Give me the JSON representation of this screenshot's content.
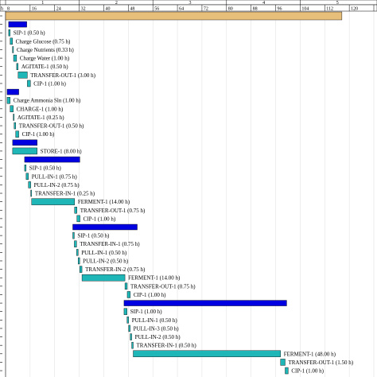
{
  "chart_data": {
    "type": "gantt",
    "time_unit": "h",
    "day_row_label": "h",
    "day_ticks": [
      "1",
      "2",
      "3",
      "4",
      "5"
    ],
    "hour_ticks": [
      "8",
      "16",
      "24",
      "32",
      "40",
      "48",
      "56",
      "64",
      "72",
      "80",
      "88",
      "96",
      "104",
      "112",
      "120"
    ],
    "xlim": [
      0,
      120
    ],
    "colors": {
      "recipe": "#e8bf7a",
      "procedure": "#0000e0",
      "operation": "#1fb6b8",
      "border": "#000000"
    },
    "rows": [
      {
        "kind": "recipe",
        "start": 0,
        "duration": 109.6
      },
      {
        "kind": "procedure",
        "start": 1.0,
        "duration": 5.9
      },
      {
        "kind": "operation",
        "label": "SIP-1 (0.50 h)",
        "start": 1.0,
        "duration": 0.5
      },
      {
        "kind": "operation",
        "label": "Charge Glucose (0.75 h)",
        "start": 1.5,
        "duration": 0.75
      },
      {
        "kind": "operation",
        "label": "Charge Nutrients (0.33 h)",
        "start": 2.25,
        "duration": 0.33
      },
      {
        "kind": "operation",
        "label": "Charge Water (1.00 h)",
        "start": 2.6,
        "duration": 1.0
      },
      {
        "kind": "operation",
        "label": "AGITATE-1 (0.50 h)",
        "start": 3.6,
        "duration": 0.5
      },
      {
        "kind": "operation",
        "label": "TRANSFER-OUT-1 (3.00 h)",
        "start": 4.1,
        "duration": 3.0
      },
      {
        "kind": "operation",
        "label": "CIP-1 (1.00 h)",
        "start": 7.1,
        "duration": 1.0
      },
      {
        "kind": "procedure",
        "start": 0.5,
        "duration": 3.8
      },
      {
        "kind": "operation",
        "label": "Charge Ammonia Sln (1.00 h)",
        "start": 0.5,
        "duration": 1.0
      },
      {
        "kind": "operation",
        "label": "CHARGE-1 (1.00 h)",
        "start": 1.5,
        "duration": 1.0
      },
      {
        "kind": "operation",
        "label": "AGITATE-1 (0.25 h)",
        "start": 2.5,
        "duration": 0.25
      },
      {
        "kind": "operation",
        "label": "TRANSFER-OUT-1 (0.50 h)",
        "start": 2.8,
        "duration": 0.5
      },
      {
        "kind": "operation",
        "label": "CIP-1 (1.00 h)",
        "start": 3.3,
        "duration": 1.0
      },
      {
        "kind": "procedure",
        "start": 2.3,
        "duration": 8.0
      },
      {
        "kind": "operation",
        "label": "STORE-1 (8.00 h)",
        "start": 2.3,
        "duration": 8.0
      },
      {
        "kind": "procedure",
        "start": 6.2,
        "duration": 18.0
      },
      {
        "kind": "operation",
        "label": "SIP-1 (0.50 h)",
        "start": 6.2,
        "duration": 0.5
      },
      {
        "kind": "operation",
        "label": "PULL-IN-1 (0.75 h)",
        "start": 6.7,
        "duration": 0.75
      },
      {
        "kind": "operation",
        "label": "PULL-IN-2 (0.75 h)",
        "start": 7.45,
        "duration": 0.75
      },
      {
        "kind": "operation",
        "label": "TRANSFER-IN-1 (0.25 h)",
        "start": 8.2,
        "duration": 0.25
      },
      {
        "kind": "operation",
        "label": "FERMENT-1 (14.00 h)",
        "start": 8.5,
        "duration": 14.0
      },
      {
        "kind": "operation",
        "label": "TRANSFER-OUT-1 (0.75 h)",
        "start": 22.5,
        "duration": 0.75
      },
      {
        "kind": "operation",
        "label": "CIP-1 (1.00 h)",
        "start": 23.25,
        "duration": 1.0
      },
      {
        "kind": "procedure",
        "start": 21.9,
        "duration": 21.0
      },
      {
        "kind": "operation",
        "label": "SIP-1 (0.50 h)",
        "start": 21.9,
        "duration": 0.5
      },
      {
        "kind": "operation",
        "label": "TRANSFER-IN-1 (0.75 h)",
        "start": 22.4,
        "duration": 0.75
      },
      {
        "kind": "operation",
        "label": "PULL-IN-1 (0.50 h)",
        "start": 23.15,
        "duration": 0.5
      },
      {
        "kind": "operation",
        "label": "PULL-IN-2 (0.50 h)",
        "start": 23.65,
        "duration": 0.5
      },
      {
        "kind": "operation",
        "label": "TRANSFER-IN-2 (0.75 h)",
        "start": 24.15,
        "duration": 0.75
      },
      {
        "kind": "operation",
        "label": "FERMENT-1 (14.00 h)",
        "start": 24.9,
        "duration": 14.0
      },
      {
        "kind": "operation",
        "label": "TRANSFER-OUT-1 (0.75 h)",
        "start": 38.9,
        "duration": 0.75
      },
      {
        "kind": "operation",
        "label": "CIP-1 (1.00 h)",
        "start": 39.65,
        "duration": 1.0
      },
      {
        "kind": "procedure",
        "start": 38.6,
        "duration": 53.0
      },
      {
        "kind": "operation",
        "label": "SIP-1 (1.00 h)",
        "start": 38.6,
        "duration": 1.0
      },
      {
        "kind": "operation",
        "label": "PULL-IN-1 (0.50 h)",
        "start": 39.6,
        "duration": 0.5
      },
      {
        "kind": "operation",
        "label": "PULL-IN-3 (0.50 h)",
        "start": 40.1,
        "duration": 0.5
      },
      {
        "kind": "operation",
        "label": "PULL-IN-2 (0.50 h)",
        "start": 40.6,
        "duration": 0.5
      },
      {
        "kind": "operation",
        "label": "TRANSFER-IN-1 (0.50 h)",
        "start": 41.1,
        "duration": 0.5
      },
      {
        "kind": "operation",
        "label": "FERMENT-1 (48.00 h)",
        "start": 41.6,
        "duration": 48.0
      },
      {
        "kind": "operation",
        "label": "TRANSFER-OUT-1 (1.50 h)",
        "start": 89.6,
        "duration": 1.5
      },
      {
        "kind": "operation",
        "label": "CIP-1 (1.00 h)",
        "start": 91.1,
        "duration": 1.0
      }
    ]
  }
}
